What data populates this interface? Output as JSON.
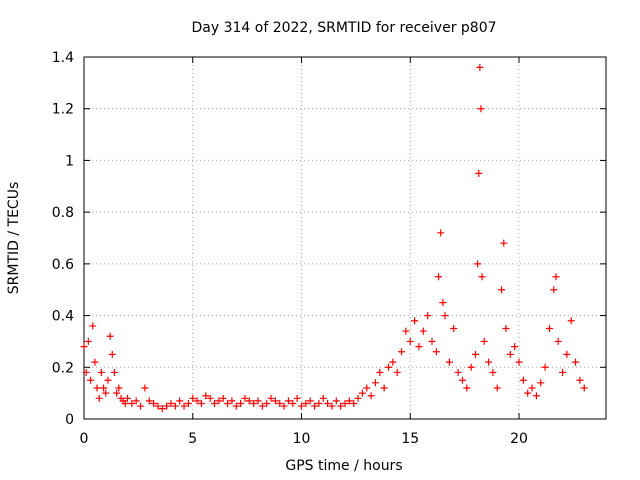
{
  "chart_data": {
    "type": "scatter",
    "title": "Day 314 of 2022, SRMTID for receiver p807",
    "xlabel": "GPS time / hours",
    "ylabel": "SRMTID / TECUs",
    "xlim": [
      0,
      24
    ],
    "ylim": [
      0,
      1.4
    ],
    "x_ticks": [
      0,
      5,
      10,
      15,
      20
    ],
    "x_tick_labels": [
      "0",
      "5",
      "10",
      "15",
      "20"
    ],
    "y_ticks": [
      0,
      0.2,
      0.4,
      0.6,
      0.8,
      1.0,
      1.2,
      1.4
    ],
    "y_tick_labels": [
      "0",
      "0.2",
      "0.4",
      "0.6",
      "0.8",
      "1",
      "1.2",
      "1.4"
    ],
    "grid": true,
    "marker": "+",
    "marker_color": "#ff0000",
    "series": [
      {
        "name": "SRMTID",
        "x": [
          0.0,
          0.1,
          0.2,
          0.3,
          0.4,
          0.5,
          0.6,
          0.7,
          0.8,
          0.9,
          1.0,
          1.1,
          1.2,
          1.3,
          1.4,
          1.5,
          1.6,
          1.7,
          1.8,
          1.9,
          2.0,
          2.2,
          2.4,
          2.6,
          2.8,
          3.0,
          3.2,
          3.4,
          3.6,
          3.8,
          4.0,
          4.2,
          4.4,
          4.6,
          4.8,
          5.0,
          5.2,
          5.4,
          5.6,
          5.8,
          6.0,
          6.2,
          6.4,
          6.6,
          6.8,
          7.0,
          7.2,
          7.4,
          7.6,
          7.8,
          8.0,
          8.2,
          8.4,
          8.6,
          8.8,
          9.0,
          9.2,
          9.4,
          9.6,
          9.8,
          10.0,
          10.2,
          10.4,
          10.6,
          10.8,
          11.0,
          11.2,
          11.4,
          11.6,
          11.8,
          12.0,
          12.2,
          12.4,
          12.6,
          12.8,
          13.0,
          13.2,
          13.4,
          13.6,
          13.8,
          14.0,
          14.2,
          14.4,
          14.6,
          14.8,
          15.0,
          15.2,
          15.4,
          15.6,
          15.8,
          16.0,
          16.2,
          16.3,
          16.4,
          16.5,
          16.6,
          16.8,
          17.0,
          17.2,
          17.4,
          17.6,
          17.8,
          18.0,
          18.1,
          18.15,
          18.2,
          18.25,
          18.3,
          18.4,
          18.6,
          18.8,
          19.0,
          19.2,
          19.3,
          19.4,
          19.6,
          19.8,
          20.0,
          20.2,
          20.4,
          20.6,
          20.8,
          21.0,
          21.2,
          21.4,
          21.6,
          21.7,
          21.8,
          22.0,
          22.2,
          22.4,
          22.6,
          22.8,
          23.0
        ],
        "y": [
          0.28,
          0.18,
          0.3,
          0.15,
          0.36,
          0.22,
          0.12,
          0.08,
          0.18,
          0.12,
          0.1,
          0.15,
          0.32,
          0.25,
          0.18,
          0.1,
          0.12,
          0.08,
          0.07,
          0.06,
          0.08,
          0.06,
          0.07,
          0.05,
          0.12,
          0.07,
          0.06,
          0.05,
          0.04,
          0.05,
          0.06,
          0.05,
          0.07,
          0.05,
          0.06,
          0.08,
          0.07,
          0.06,
          0.09,
          0.08,
          0.06,
          0.07,
          0.08,
          0.06,
          0.07,
          0.05,
          0.06,
          0.08,
          0.07,
          0.06,
          0.07,
          0.05,
          0.06,
          0.08,
          0.07,
          0.06,
          0.05,
          0.07,
          0.06,
          0.08,
          0.05,
          0.06,
          0.07,
          0.05,
          0.06,
          0.08,
          0.06,
          0.05,
          0.07,
          0.05,
          0.06,
          0.07,
          0.06,
          0.08,
          0.1,
          0.12,
          0.09,
          0.14,
          0.18,
          0.12,
          0.2,
          0.22,
          0.18,
          0.26,
          0.34,
          0.3,
          0.38,
          0.28,
          0.34,
          0.4,
          0.3,
          0.26,
          0.55,
          0.72,
          0.45,
          0.4,
          0.22,
          0.35,
          0.18,
          0.15,
          0.12,
          0.2,
          0.25,
          0.6,
          0.95,
          1.36,
          1.2,
          0.55,
          0.3,
          0.22,
          0.18,
          0.12,
          0.5,
          0.68,
          0.35,
          0.25,
          0.28,
          0.22,
          0.15,
          0.1,
          0.12,
          0.09,
          0.14,
          0.2,
          0.35,
          0.5,
          0.55,
          0.3,
          0.18,
          0.25,
          0.38,
          0.22,
          0.15,
          0.12
        ]
      }
    ]
  }
}
